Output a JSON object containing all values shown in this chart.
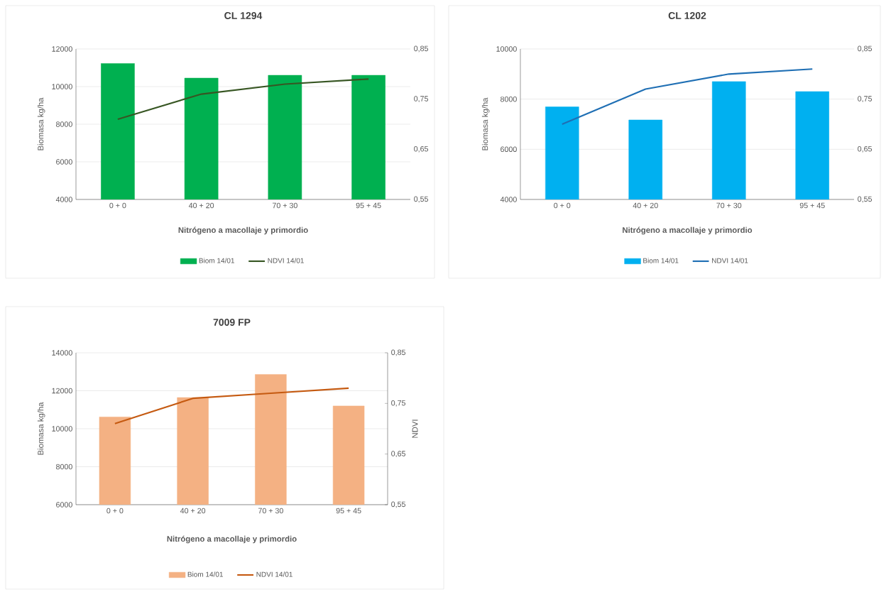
{
  "chart_data": [
    {
      "type": "bar",
      "title": "CL 1294",
      "xlabel": "Nitrógeno a macollaje y primordio",
      "ylabel": "Biomasa kg/ha",
      "categories": [
        "0 + 0",
        "40 + 20",
        "70 + 30",
        "95 + 45"
      ],
      "ylim": [
        4000,
        12000
      ],
      "yticks": [
        4000,
        6000,
        8000,
        10000,
        12000
      ],
      "y2lim": [
        0.55,
        0.85
      ],
      "y2ticks": [
        {
          "value": 0.55,
          "label": "0,55"
        },
        {
          "value": 0.65,
          "label": "0,65"
        },
        {
          "value": 0.75,
          "label": "0,75"
        },
        {
          "value": 0.85,
          "label": "0,85"
        }
      ],
      "grid": "y",
      "legend": "bottom",
      "series": [
        {
          "name": "Biom 14/01",
          "color": "#00b050",
          "values": [
            11230,
            10450,
            10600,
            10600
          ]
        },
        {
          "name": "NDVI 14/01",
          "type": "line",
          "axis": "y2",
          "color": "#375623",
          "values": [
            0.71,
            0.76,
            0.78,
            0.79
          ]
        }
      ]
    },
    {
      "type": "bar",
      "title": "CL 1202",
      "xlabel": "Nitrógeno a macollaje y primordio",
      "ylabel": "Biomasa kg/ha",
      "categories": [
        "0 + 0",
        "40 + 20",
        "70 + 30",
        "95 + 45"
      ],
      "ylim": [
        4000,
        10000
      ],
      "yticks": [
        4000,
        6000,
        8000,
        10000
      ],
      "y2lim": [
        0.55,
        0.85
      ],
      "y2ticks": [
        {
          "value": 0.55,
          "label": "0,55"
        },
        {
          "value": 0.65,
          "label": "0,65"
        },
        {
          "value": 0.75,
          "label": "0,75"
        },
        {
          "value": 0.85,
          "label": "0,85"
        }
      ],
      "grid": "y",
      "legend": "bottom",
      "series": [
        {
          "name": "Biom 14/01",
          "color": "#00b0f0",
          "values": [
            7690,
            7170,
            8700,
            8300
          ]
        },
        {
          "name": "NDVI 14/01",
          "type": "line",
          "axis": "y2",
          "color": "#1f6fb4",
          "values": [
            0.7,
            0.77,
            0.8,
            0.81
          ]
        }
      ]
    },
    {
      "type": "bar",
      "title": "7009 FP",
      "xlabel": "Nitrógeno a macollaje y primordio",
      "ylabel": "Biomasa kg/ha",
      "y2label": "NDVI",
      "categories": [
        "0 + 0",
        "40 + 20",
        "70 + 30",
        "95 + 45"
      ],
      "ylim": [
        6000,
        14000
      ],
      "yticks": [
        6000,
        8000,
        10000,
        12000,
        14000
      ],
      "y2lim": [
        0.55,
        0.85
      ],
      "y2ticks": [
        {
          "value": 0.55,
          "label": "0,55"
        },
        {
          "value": 0.65,
          "label": "0,65"
        },
        {
          "value": 0.75,
          "label": "0,75"
        },
        {
          "value": 0.85,
          "label": "0,85"
        }
      ],
      "grid": "y",
      "legend": "bottom",
      "series": [
        {
          "name": "Biom 14/01",
          "color": "#f4b183",
          "values": [
            10620,
            11640,
            12860,
            11200
          ]
        },
        {
          "name": "NDVI 14/01",
          "type": "line",
          "axis": "y2",
          "color": "#c55a11",
          "values": [
            0.71,
            0.76,
            0.77,
            0.78
          ]
        }
      ]
    }
  ]
}
